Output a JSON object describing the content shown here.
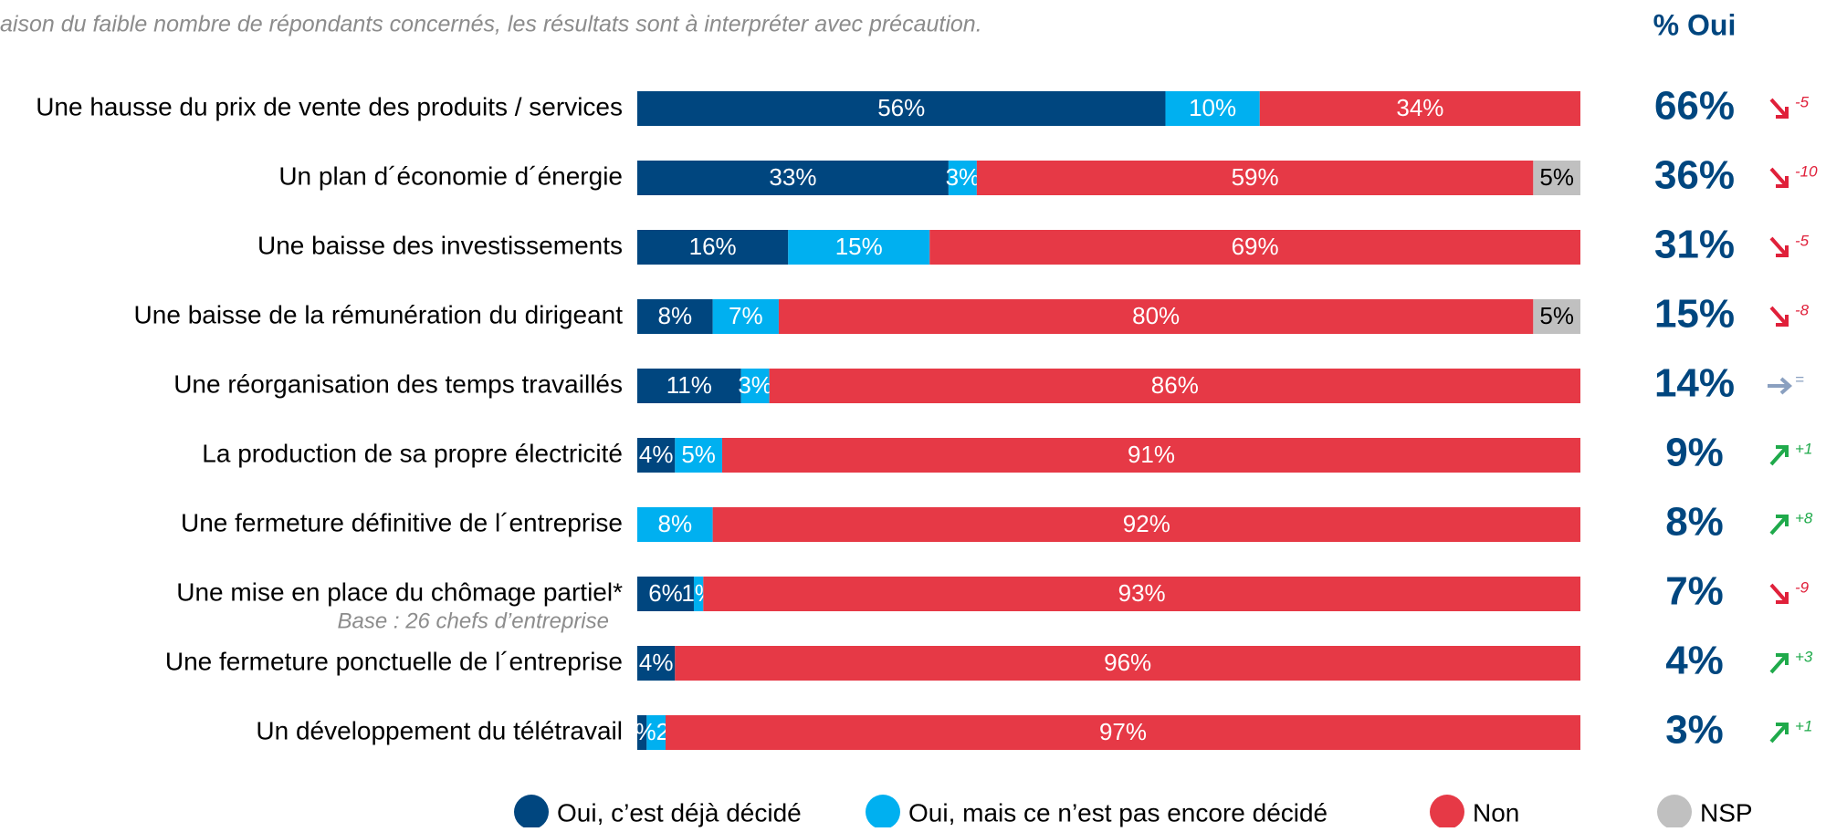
{
  "chart_data": {
    "type": "stacked-bar-horizontal",
    "subtitle": "aison du faible nombre de répondants concernés, les résultats sont à interpréter avec précaution.",
    "side_title": "% Oui",
    "note": "Base : 26 chefs d’entreprise",
    "categories": [
      "Une hausse du prix de vente des produits / services",
      "Un plan d´économie d´énergie",
      "Une baisse des investissements",
      "Une baisse de la rémunération du dirigeant",
      "Une réorganisation des temps travaillés",
      "La production de sa propre électricité",
      "Une fermeture définitive de l´entreprise",
      "Une mise en place du chômage partiel*",
      "Une fermeture ponctuelle de l´entreprise",
      "Un développement du télétravail"
    ],
    "xlim": [
      0,
      100
    ],
    "series": [
      {
        "name": "Oui, c’est déjà décidé",
        "color": "#00467f",
        "label_color": "#ffffff",
        "values": [
          56,
          33,
          16,
          8,
          11,
          4,
          null,
          6,
          4,
          1
        ],
        "value_labels": [
          "56%",
          "33%",
          "16%",
          "8%",
          "11%",
          "4%",
          null,
          "6%",
          "4%",
          ""
        ]
      },
      {
        "name": "Oui, mais ce n’est pas encore décidé",
        "color": "#00b0f0",
        "label_color": "#ffffff",
        "values": [
          10,
          3,
          15,
          7,
          3,
          5,
          8,
          1,
          null,
          2
        ],
        "value_labels": [
          "10%",
          "3%",
          "15%",
          "7%",
          "3%",
          "5%",
          "8%",
          "1%",
          null,
          "1%2%"
        ]
      },
      {
        "name": "Non",
        "color": "#e63946",
        "label_color": "#ffffff",
        "values": [
          34,
          59,
          69,
          80,
          86,
          91,
          92,
          93,
          96,
          97
        ],
        "value_labels": [
          "34%",
          "59%",
          "69%",
          "80%",
          "86%",
          "91%",
          "92%",
          "93%",
          "96%",
          "97%"
        ]
      },
      {
        "name": "NSP",
        "color": "#c0c0c0",
        "label_color": "#000000",
        "values": [
          null,
          5,
          null,
          5,
          null,
          null,
          null,
          null,
          null,
          null
        ],
        "value_labels": [
          null,
          "5%",
          null,
          "5%",
          null,
          null,
          null,
          null,
          null,
          null
        ]
      }
    ],
    "oui_totals": [
      {
        "value": 66,
        "label": "66%"
      },
      {
        "value": 36,
        "label": "36%"
      },
      {
        "value": 31,
        "label": "31%"
      },
      {
        "value": 15,
        "label": "15%"
      },
      {
        "value": 14,
        "label": "14%"
      },
      {
        "value": 9,
        "label": "9%"
      },
      {
        "value": 8,
        "label": "8%"
      },
      {
        "value": 7,
        "label": "7%"
      },
      {
        "value": 4,
        "label": "4%"
      },
      {
        "value": 3,
        "label": "3%"
      }
    ],
    "changes": [
      "-5",
      "-10",
      "-5",
      "-8",
      "=",
      "+1",
      "+8",
      "-9",
      "+3",
      "+1"
    ]
  }
}
